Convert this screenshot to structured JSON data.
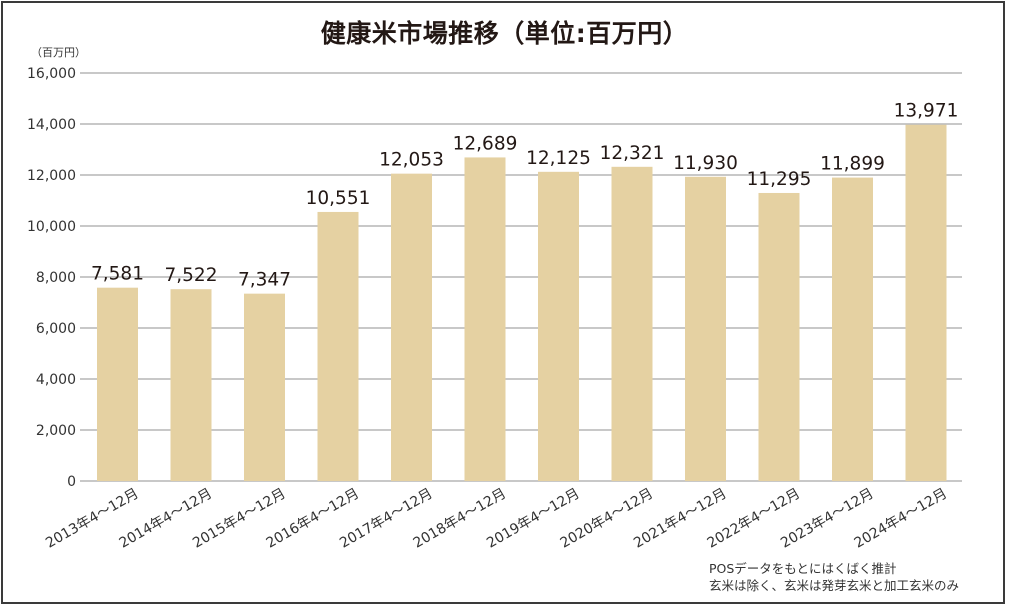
{
  "title": "健康米市場推移（単位:百万円）",
  "unit_label": "（百万円）",
  "notes": [
    "POSデータをもとにはくばく推計",
    "玄米は除く、玄米は発芽玄米と加工玄米のみ"
  ],
  "colors": {
    "bar": "#E5D1A2",
    "grid": "#A8A8A8",
    "text": "#231815",
    "frame": "#3A3A3A"
  },
  "chart_data": {
    "type": "bar",
    "title": "健康米市場推移（単位:百万円）",
    "xlabel": "",
    "ylabel": "（百万円）",
    "ylim": [
      0,
      16000
    ],
    "yticks": [
      0,
      2000,
      4000,
      6000,
      8000,
      10000,
      12000,
      14000,
      16000
    ],
    "ytick_labels": [
      "0",
      "2,000",
      "4,000",
      "6,000",
      "8,000",
      "10,000",
      "12,000",
      "14,000",
      "16,000"
    ],
    "grid": true,
    "legend": null,
    "categories": [
      "2013年4～12月",
      "2014年4～12月",
      "2015年4～12月",
      "2016年4～12月",
      "2017年4～12月",
      "2018年4～12月",
      "2019年4～12月",
      "2020年4～12月",
      "2021年4～12月",
      "2022年4～12月",
      "2023年4～12月",
      "2024年4～12月"
    ],
    "values": [
      7581,
      7522,
      7347,
      10551,
      12053,
      12689,
      12125,
      12321,
      11930,
      11295,
      11899,
      13971
    ],
    "value_labels": [
      "7,581",
      "7,522",
      "7,347",
      "10,551",
      "12,053",
      "12,689",
      "12,125",
      "12,321",
      "11,930",
      "11,295",
      "11,899",
      "13,971"
    ],
    "annotations": [
      "POSデータをもとにはくばく推計",
      "玄米は除く、玄米は発芽玄米と加工玄米のみ"
    ]
  }
}
